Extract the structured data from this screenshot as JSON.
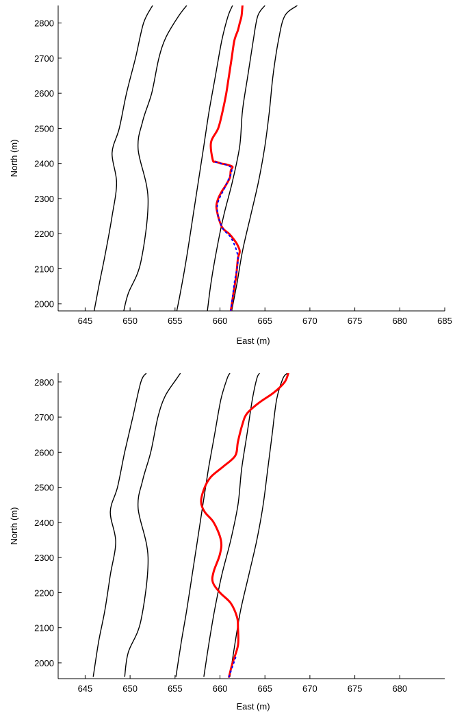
{
  "chart_data": [
    {
      "type": "line",
      "xlabel": "East (m)",
      "ylabel": "North (m)",
      "xlim": [
        642,
        685
      ],
      "ylim": [
        1980,
        2850
      ],
      "xticks": [
        645,
        650,
        655,
        660,
        665,
        670,
        675,
        680,
        685
      ],
      "yticks": [
        2000,
        2100,
        2200,
        2300,
        2400,
        2500,
        2600,
        2700,
        2800
      ],
      "grid": false,
      "colors": {
        "lanes": "#000000",
        "path": "#ff0000",
        "marker": "#0000ff"
      },
      "lanes": [
        {
          "x": [
            646.0,
            646.6,
            647.3,
            648.0,
            648.5,
            648.0,
            648.8,
            649.6,
            650.6,
            651.5,
            652.5
          ],
          "y": [
            1980,
            2060,
            2150,
            2250,
            2345,
            2430,
            2500,
            2600,
            2700,
            2800,
            2850
          ]
        },
        {
          "x": [
            649.3,
            649.8,
            651.2,
            652.0,
            650.9,
            651.4,
            652.4,
            653.2,
            654.0,
            655.4,
            656.3
          ],
          "y": [
            1980,
            2030,
            2120,
            2300,
            2440,
            2520,
            2600,
            2700,
            2760,
            2820,
            2850
          ]
        },
        {
          "x": [
            655.2,
            655.8,
            656.4,
            657.0,
            657.6,
            658.2,
            658.8,
            659.5,
            660.2,
            660.9,
            661.4
          ],
          "y": [
            1980,
            2060,
            2150,
            2250,
            2350,
            2450,
            2550,
            2650,
            2750,
            2820,
            2850
          ]
        },
        {
          "x": [
            658.6,
            659.0,
            659.6,
            660.4,
            661.4,
            662.2,
            662.5,
            663.1,
            663.7,
            664.2,
            665.0
          ],
          "y": [
            1980,
            2060,
            2150,
            2250,
            2350,
            2450,
            2550,
            2650,
            2750,
            2820,
            2850
          ]
        },
        {
          "x": [
            661.3,
            661.9,
            662.5,
            663.4,
            664.3,
            665.0,
            665.5,
            665.9,
            666.5,
            667.2,
            668.6
          ],
          "y": [
            1980,
            2060,
            2150,
            2250,
            2350,
            2450,
            2550,
            2650,
            2750,
            2820,
            2850
          ]
        }
      ],
      "path": {
        "x": [
          661.2,
          661.5,
          661.8,
          662.0,
          662.2,
          661.9,
          661.5,
          661.0,
          660.5,
          660.2,
          659.9,
          659.7,
          659.6,
          659.8,
          660.2,
          660.7,
          661.1,
          661.2,
          661.4,
          661.0,
          660.5,
          660.1,
          659.9,
          659.5,
          659.2,
          659.0,
          659.8,
          660.3,
          660.7,
          661.0,
          661.3,
          661.6,
          662.0,
          662.2,
          662.4,
          662.5
        ],
        "y": [
          1980,
          2030,
          2080,
          2130,
          2150,
          2170,
          2185,
          2200,
          2210,
          2220,
          2240,
          2260,
          2280,
          2300,
          2320,
          2340,
          2360,
          2380,
          2390,
          2395,
          2398,
          2400,
          2402,
          2405,
          2410,
          2460,
          2500,
          2550,
          2600,
          2650,
          2700,
          2750,
          2780,
          2800,
          2820,
          2850
        ]
      },
      "marker_path": {
        "x": [
          661.2,
          661.6,
          662.0,
          661.3,
          660.2,
          659.7,
          660.7,
          661.3,
          660.1,
          659.2
        ],
        "y": [
          1980,
          2060,
          2130,
          2185,
          2220,
          2280,
          2340,
          2385,
          2400,
          2405
        ]
      }
    },
    {
      "type": "line",
      "xlabel": "East (m)",
      "ylabel": "North (m)",
      "xlim": [
        642,
        685
      ],
      "ylim": [
        1955,
        2825
      ],
      "xticks": [
        645,
        650,
        655,
        660,
        665,
        670,
        675,
        680
      ],
      "yticks": [
        2000,
        2100,
        2200,
        2300,
        2400,
        2500,
        2600,
        2700,
        2800
      ],
      "grid": false,
      "colors": {
        "lanes": "#000000",
        "path": "#ff0000",
        "marker": "#0000ff"
      },
      "lanes": [
        {
          "x": [
            645.9,
            646.5,
            647.2,
            647.8,
            648.4,
            647.8,
            648.6,
            649.4,
            650.3,
            651.2,
            651.8
          ],
          "y": [
            1960,
            2060,
            2150,
            2250,
            2345,
            2430,
            2500,
            2600,
            2700,
            2800,
            2825
          ]
        },
        {
          "x": [
            649.4,
            649.8,
            651.2,
            652.0,
            650.9,
            651.4,
            652.3,
            653.1,
            653.9,
            655.2,
            655.6
          ],
          "y": [
            1960,
            2030,
            2120,
            2300,
            2440,
            2520,
            2600,
            2700,
            2760,
            2810,
            2825
          ]
        },
        {
          "x": [
            655.1,
            655.7,
            656.3,
            656.9,
            657.5,
            658.1,
            658.7,
            659.4,
            660.1,
            660.8,
            661.1
          ],
          "y": [
            1960,
            2060,
            2150,
            2250,
            2350,
            2450,
            2550,
            2650,
            2750,
            2810,
            2825
          ]
        },
        {
          "x": [
            658.2,
            658.8,
            659.4,
            660.2,
            661.2,
            662.0,
            662.4,
            663.0,
            663.6,
            664.1,
            664.4
          ],
          "y": [
            1960,
            2060,
            2150,
            2250,
            2350,
            2450,
            2550,
            2650,
            2750,
            2810,
            2825
          ]
        },
        {
          "x": [
            661.1,
            661.7,
            662.3,
            663.2,
            664.1,
            664.8,
            665.3,
            665.8,
            666.3,
            667.0,
            667.5
          ],
          "y": [
            1960,
            2060,
            2150,
            2250,
            2350,
            2450,
            2550,
            2650,
            2750,
            2810,
            2825
          ]
        }
      ],
      "path": {
        "x": [
          661.0,
          661.4,
          662.0,
          662.0,
          661.9,
          661.2,
          660.0,
          659.2,
          659.3,
          660.0,
          660.1,
          659.3,
          658.3,
          657.9,
          658.3,
          659.0,
          660.4,
          661.7,
          662.0,
          662.5,
          663.0,
          664.3,
          666.0,
          667.2,
          667.6
        ],
        "y": [
          1960,
          2000,
          2050,
          2100,
          2130,
          2170,
          2200,
          2230,
          2260,
          2310,
          2350,
          2400,
          2430,
          2460,
          2500,
          2530,
          2560,
          2590,
          2630,
          2680,
          2710,
          2740,
          2770,
          2800,
          2825
        ]
      },
      "marker_path": {
        "x": [
          661.0,
          661.4,
          661.8
        ],
        "y": [
          1960,
          1990,
          2020
        ]
      }
    }
  ]
}
